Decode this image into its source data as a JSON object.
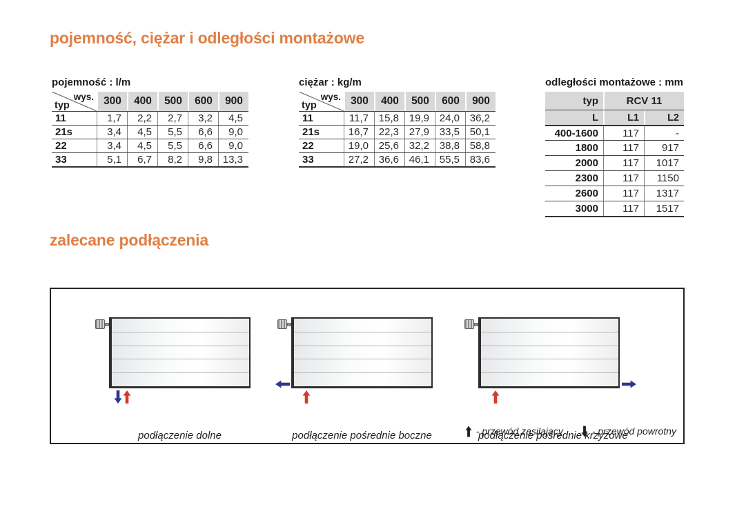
{
  "page": {
    "heading_capacity_weight": "pojemność, ciężar i odległości montażowe",
    "heading_connections": "zalecane podłączenia",
    "accent_color": "#e07f45",
    "header_gray": "#d8d8d8"
  },
  "tables": [
    {
      "label": "pojemność : l/m",
      "corner": {
        "top": "wys.",
        "bottom": "typ"
      },
      "columns": [
        "300",
        "400",
        "500",
        "600",
        "900"
      ],
      "rows": [
        {
          "typ": "11",
          "values": [
            "1,7",
            "2,2",
            "2,7",
            "3,2",
            "4,5"
          ]
        },
        {
          "typ": "21s",
          "values": [
            "3,4",
            "4,5",
            "5,5",
            "6,6",
            "9,0"
          ]
        },
        {
          "typ": "22",
          "values": [
            "3,4",
            "4,5",
            "5,5",
            "6,6",
            "9,0"
          ]
        },
        {
          "typ": "33",
          "values": [
            "5,1",
            "6,7",
            "8,2",
            "9,8",
            "13,3"
          ]
        }
      ]
    },
    {
      "label": "ciężar : kg/m",
      "corner": {
        "top": "wys.",
        "bottom": "typ"
      },
      "columns": [
        "300",
        "400",
        "500",
        "600",
        "900"
      ],
      "rows": [
        {
          "typ": "11",
          "values": [
            "11,7",
            "15,8",
            "19,9",
            "24,0",
            "36,2"
          ]
        },
        {
          "typ": "21s",
          "values": [
            "16,7",
            "22,3",
            "27,9",
            "33,5",
            "50,1"
          ]
        },
        {
          "typ": "22",
          "values": [
            "19,0",
            "25,6",
            "32,2",
            "38,8",
            "58,8"
          ]
        },
        {
          "typ": "33",
          "values": [
            "27,2",
            "36,6",
            "46,1",
            "55,5",
            "83,6"
          ]
        }
      ]
    }
  ],
  "mounting_table": {
    "label": "odległości montażowe : mm",
    "header1": {
      "typ": "typ",
      "group": "RCV 11"
    },
    "header2": [
      "L",
      "L1",
      "L2"
    ],
    "rows": [
      {
        "l": "400-1600",
        "l1": "117",
        "l2": "-"
      },
      {
        "l": "1800",
        "l1": "117",
        "l2": "917"
      },
      {
        "l": "2000",
        "l1": "117",
        "l2": "1017"
      },
      {
        "l": "2300",
        "l1": "117",
        "l2": "1150"
      },
      {
        "l": "2600",
        "l1": "117",
        "l2": "1317"
      },
      {
        "l": "3000",
        "l1": "117",
        "l2": "1517"
      }
    ]
  },
  "diagrams": {
    "captions": [
      "podłączenie dolne",
      "podłączenie pośrednie boczne",
      "podłączenie pośrednie krzyżowe"
    ],
    "legend": [
      {
        "icon": "supply-arrow-up-red",
        "label": "- przewód zasilający"
      },
      {
        "icon": "return-arrow-down-blue",
        "label": "- przewód powrotny"
      }
    ],
    "colors": {
      "supply": "#d6392e",
      "return": "#2e3590"
    }
  }
}
